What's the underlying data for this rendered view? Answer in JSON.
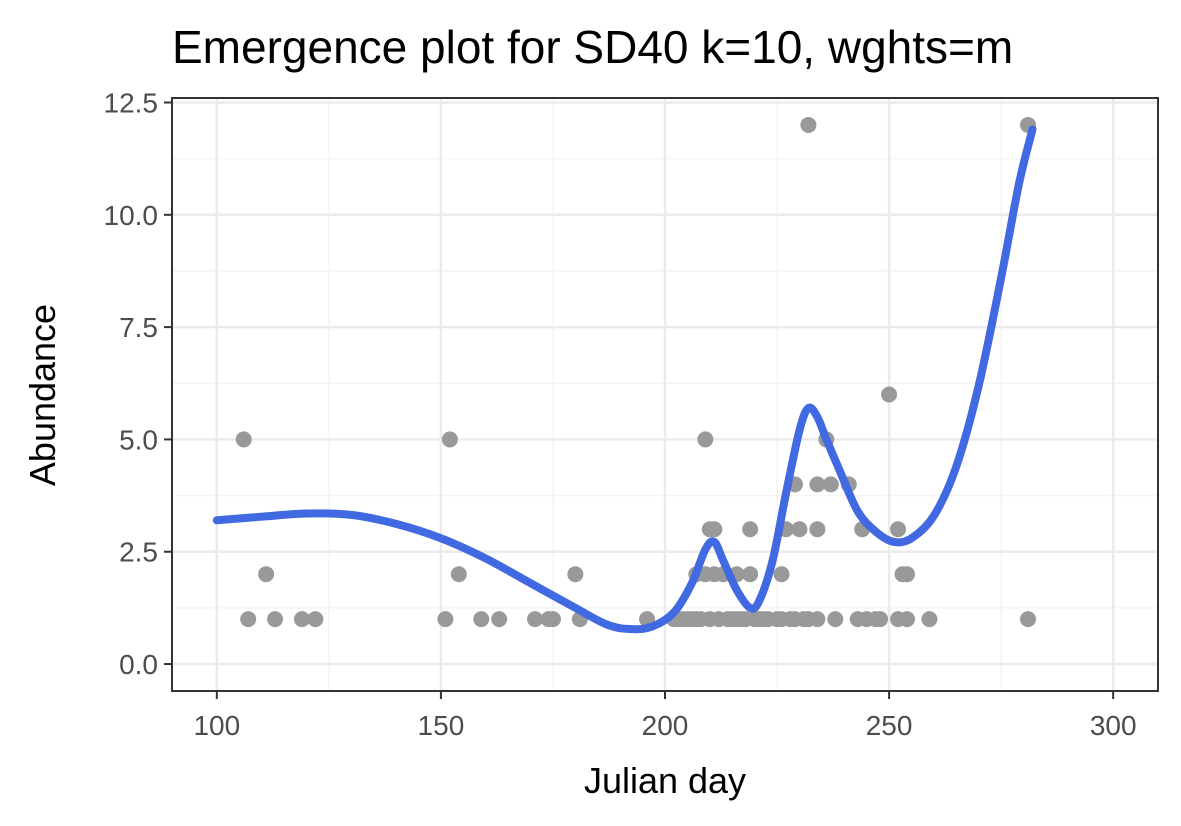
{
  "colors": {
    "background": "#ffffff",
    "panel_border": "#333333",
    "grid_major": "#ebebeb",
    "grid_minor": "#f4f4f4",
    "points": "#999999",
    "smooth_line": "#4169e1",
    "tick_text": "#4d4d4d"
  },
  "chart_data": {
    "type": "scatter",
    "title": "Emergence plot for SD40 k=10, wghts=m",
    "xlabel": "Julian day",
    "ylabel": "Abundance",
    "xlim": [
      90,
      310
    ],
    "ylim": [
      -0.6,
      12.6
    ],
    "x_ticks": [
      100,
      150,
      200,
      250,
      300
    ],
    "x_tick_labels": [
      "100",
      "150",
      "200",
      "250",
      "300"
    ],
    "y_ticks": [
      0.0,
      2.5,
      5.0,
      7.5,
      10.0,
      12.5
    ],
    "y_tick_labels": [
      "0.0",
      "2.5",
      "5.0",
      "7.5",
      "10.0",
      "12.5"
    ],
    "grid": true,
    "legend": "none",
    "series": [
      {
        "type": "scatter",
        "points": [
          [
            106,
            5
          ],
          [
            107,
            1
          ],
          [
            111,
            2
          ],
          [
            113,
            1
          ],
          [
            119,
            1
          ],
          [
            122,
            1
          ],
          [
            151,
            1
          ],
          [
            152,
            5
          ],
          [
            154,
            2
          ],
          [
            159,
            1
          ],
          [
            163,
            1
          ],
          [
            171,
            1
          ],
          [
            174,
            1
          ],
          [
            175,
            1
          ],
          [
            180,
            2
          ],
          [
            181,
            1
          ],
          [
            196,
            1
          ],
          [
            202,
            1
          ],
          [
            203,
            1
          ],
          [
            204,
            1
          ],
          [
            205,
            1
          ],
          [
            206,
            1
          ],
          [
            207,
            1
          ],
          [
            207,
            2
          ],
          [
            208,
            1
          ],
          [
            209,
            5
          ],
          [
            209,
            2
          ],
          [
            210,
            1
          ],
          [
            210,
            3
          ],
          [
            211,
            2
          ],
          [
            211,
            3
          ],
          [
            212,
            1
          ],
          [
            213,
            2
          ],
          [
            214,
            1
          ],
          [
            215,
            1
          ],
          [
            216,
            1
          ],
          [
            216,
            2
          ],
          [
            217,
            1
          ],
          [
            218,
            1
          ],
          [
            219,
            3
          ],
          [
            219,
            2
          ],
          [
            220,
            1
          ],
          [
            221,
            1
          ],
          [
            222,
            1
          ],
          [
            223,
            1
          ],
          [
            225,
            1
          ],
          [
            226,
            2
          ],
          [
            226,
            1
          ],
          [
            227,
            3
          ],
          [
            228,
            1
          ],
          [
            229,
            4
          ],
          [
            229,
            1
          ],
          [
            230,
            3
          ],
          [
            231,
            1
          ],
          [
            232,
            12
          ],
          [
            232,
            1
          ],
          [
            234,
            4
          ],
          [
            234,
            3
          ],
          [
            234,
            1
          ],
          [
            236,
            5
          ],
          [
            237,
            4
          ],
          [
            238,
            1
          ],
          [
            241,
            4
          ],
          [
            243,
            1
          ],
          [
            244,
            3
          ],
          [
            245,
            1
          ],
          [
            247,
            1
          ],
          [
            248,
            1
          ],
          [
            250,
            6
          ],
          [
            252,
            1
          ],
          [
            252,
            3
          ],
          [
            253,
            2
          ],
          [
            254,
            2
          ],
          [
            254,
            1
          ],
          [
            259,
            1
          ],
          [
            281,
            12
          ],
          [
            281,
            1
          ]
        ]
      },
      {
        "type": "line",
        "points": [
          [
            100,
            3.2
          ],
          [
            110,
            3.28
          ],
          [
            120,
            3.35
          ],
          [
            130,
            3.32
          ],
          [
            140,
            3.12
          ],
          [
            150,
            2.8
          ],
          [
            160,
            2.35
          ],
          [
            170,
            1.8
          ],
          [
            180,
            1.25
          ],
          [
            187,
            0.88
          ],
          [
            192,
            0.78
          ],
          [
            197,
            0.83
          ],
          [
            202,
            1.15
          ],
          [
            206,
            1.8
          ],
          [
            209,
            2.55
          ],
          [
            211,
            2.72
          ],
          [
            213,
            2.3
          ],
          [
            216,
            1.65
          ],
          [
            219,
            1.25
          ],
          [
            221,
            1.4
          ],
          [
            224,
            2.3
          ],
          [
            227,
            3.8
          ],
          [
            230,
            5.2
          ],
          [
            232,
            5.7
          ],
          [
            234,
            5.5
          ],
          [
            236,
            5.0
          ],
          [
            239,
            4.3
          ],
          [
            243,
            3.4
          ],
          [
            247,
            2.95
          ],
          [
            251,
            2.72
          ],
          [
            255,
            2.8
          ],
          [
            260,
            3.3
          ],
          [
            265,
            4.4
          ],
          [
            270,
            6.2
          ],
          [
            275,
            8.6
          ],
          [
            279,
            10.7
          ],
          [
            282,
            11.9
          ]
        ]
      }
    ]
  }
}
